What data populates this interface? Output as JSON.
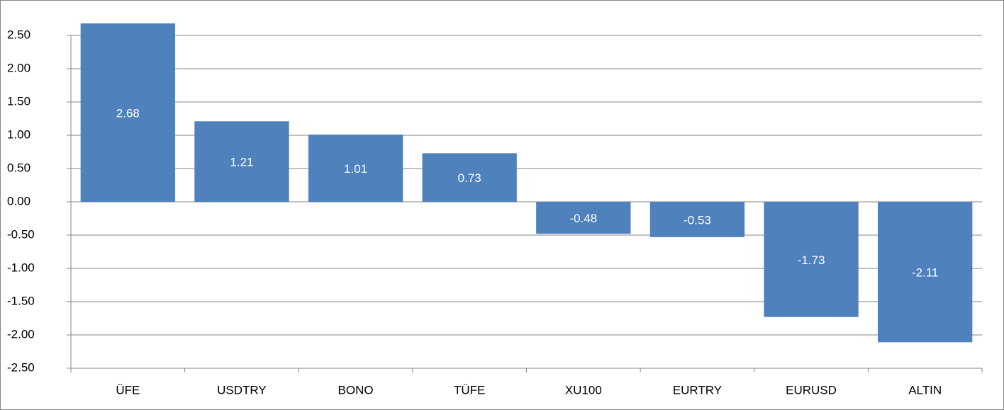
{
  "chart_data": {
    "type": "bar",
    "categories": [
      "ÜFE",
      "USDTRY",
      "BONO",
      "TÜFE",
      "XU100",
      "EURTRY",
      "EURUSD",
      "ALTIN"
    ],
    "values": [
      2.68,
      1.21,
      1.01,
      0.73,
      -0.48,
      -0.53,
      -1.73,
      -2.11
    ],
    "color": "#4f81bd",
    "ylim": [
      -2.5,
      2.5
    ],
    "yticks": [
      {
        "value": 2.5,
        "label": "2.50"
      },
      {
        "value": 2,
        "label": "2.00"
      },
      {
        "value": 1.5,
        "label": "1.50"
      },
      {
        "value": 1,
        "label": "1.00"
      },
      {
        "value": 0.5,
        "label": "0.50"
      },
      {
        "value": 0,
        "label": "0.00"
      },
      {
        "value": -0.5,
        "label": "-0.50"
      },
      {
        "value": -1,
        "label": "-1.00"
      },
      {
        "value": -1.5,
        "label": "-1.50"
      },
      {
        "value": -2,
        "label": "-2.00"
      },
      {
        "value": -2.5,
        "label": "-2.50"
      }
    ],
    "grid": true
  }
}
